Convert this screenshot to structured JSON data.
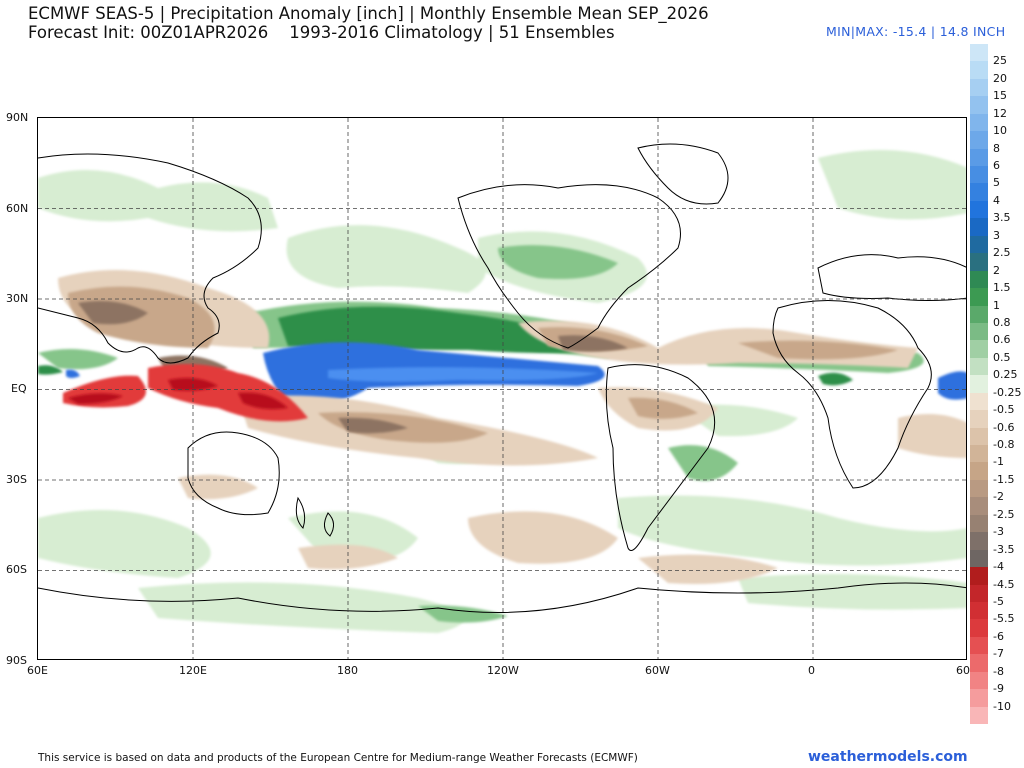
{
  "header": {
    "line1": "ECMWF SEAS-5 | Precipitation Anomaly [inch] | Monthly Ensemble Mean SEP_2026",
    "line2": "Forecast Init: 00Z01APR2026    1993-2016 Climatology | 51 Ensembles",
    "minmax": "MIN|MAX: -15.4 | 14.8 INCH"
  },
  "map": {
    "lat_labels": [
      "90N",
      "60N",
      "30N",
      "EQ",
      "30S",
      "60S",
      "90S"
    ],
    "lon_labels": [
      "60E",
      "120E",
      "180",
      "120W",
      "60W",
      "0",
      "60E"
    ],
    "colors": {
      "wet_light": "#d7edd2",
      "wet_mid": "#86c58a",
      "wet_dark": "#2f8f4a",
      "wet_blue": "#2f6fde",
      "wet_blue_light": "#4b8ff0",
      "dry_light": "#e6d2bd",
      "dry_mid": "#c8a78a",
      "dry_dark": "#8d7362",
      "dry_red": "#e23b3b",
      "dry_red_dark": "#b8101a"
    }
  },
  "colorbar": {
    "labels": [
      "25",
      "20",
      "15",
      "12",
      "10",
      "8",
      "6",
      "5",
      "4",
      "3.5",
      "3",
      "2.5",
      "2",
      "1.5",
      "1",
      "0.8",
      "0.6",
      "0.5",
      "0.25",
      "-0.25",
      "-0.5",
      "-0.6",
      "-0.8",
      "-1",
      "-1.5",
      "-2",
      "-2.5",
      "-3",
      "-3.5",
      "-4",
      "-4.5",
      "-5",
      "-5.5",
      "-6",
      "-7",
      "-8",
      "-9",
      "-10"
    ],
    "colors": [
      "#b9dcf5",
      "#a6cff2",
      "#93c2ef",
      "#80b5ec",
      "#6da8e9",
      "#5a9be6",
      "#478ee3",
      "#3481e0",
      "#2174dd",
      "#1a69c4",
      "#1f6aa0",
      "#2a7080",
      "#2f8a54",
      "#3c9a52",
      "#5aa96a",
      "#7bbb85",
      "#a0cfa4",
      "#c2e0c2",
      "#e2f1df",
      "#efe1d0",
      "#e6d2bd",
      "#dcc3aa",
      "#d1b498",
      "#c6a587",
      "#b99a82",
      "#a88d7b",
      "#978172",
      "#7e7069",
      "#6e6663",
      "#b11d1d",
      "#c3262a",
      "#d12f33",
      "#dc3a3d",
      "#e55052",
      "#ec6a6b",
      "#f18384",
      "#f59c9d",
      "#f9b6b7"
    ]
  },
  "footer": {
    "disclaimer": "This service is based on data and products of the European Centre for Medium-range Weather Forecasts (ECMWF)",
    "brand": "weathermodels.com"
  }
}
